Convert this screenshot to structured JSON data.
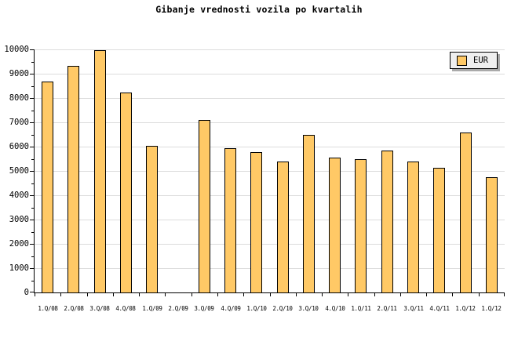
{
  "colors": {
    "bar_fill": "#FFC966",
    "bar_border": "#000000",
    "gridline": "#DCDCDC",
    "axis": "#000000",
    "legend_bg": "#EFEFEF",
    "legend_border": "#000000",
    "legend_shadow": "#AAAAAA",
    "background": "#FFFFFF",
    "text": "#000000"
  },
  "chart_data": {
    "type": "bar",
    "title": "Gibanje vrednosti vozila po kvartalih",
    "categories": [
      "1.Q/08",
      "2.Q/08",
      "3.Q/08",
      "4.Q/08",
      "1.Q/09",
      "2.Q/09",
      "3.Q/09",
      "4.Q/09",
      "1.Q/10",
      "2.Q/10",
      "3.Q/10",
      "4.Q/10",
      "1.Q/11",
      "2.Q/11",
      "3.Q/11",
      "4.Q/11",
      "1.Q/12",
      "1.Q/12"
    ],
    "series": [
      {
        "name": "EUR",
        "values": [
          8650,
          9300,
          9950,
          8200,
          6000,
          null,
          7050,
          5900,
          5750,
          5350,
          6450,
          5500,
          5450,
          5800,
          5350,
          5100,
          6550,
          4700
        ]
      }
    ],
    "xlabel": "",
    "ylabel": "",
    "ylim": [
      0,
      10000
    ],
    "y_major_step": 1000,
    "y_minor_step": 500,
    "y_tick_labels": [
      "0",
      "1000",
      "2000",
      "3000",
      "4000",
      "5000",
      "6000",
      "7000",
      "8000",
      "9000",
      "10000"
    ],
    "grid": "horizontal-major",
    "legend_position": "top-right",
    "missing_categories": [
      "2.Q/09"
    ]
  }
}
